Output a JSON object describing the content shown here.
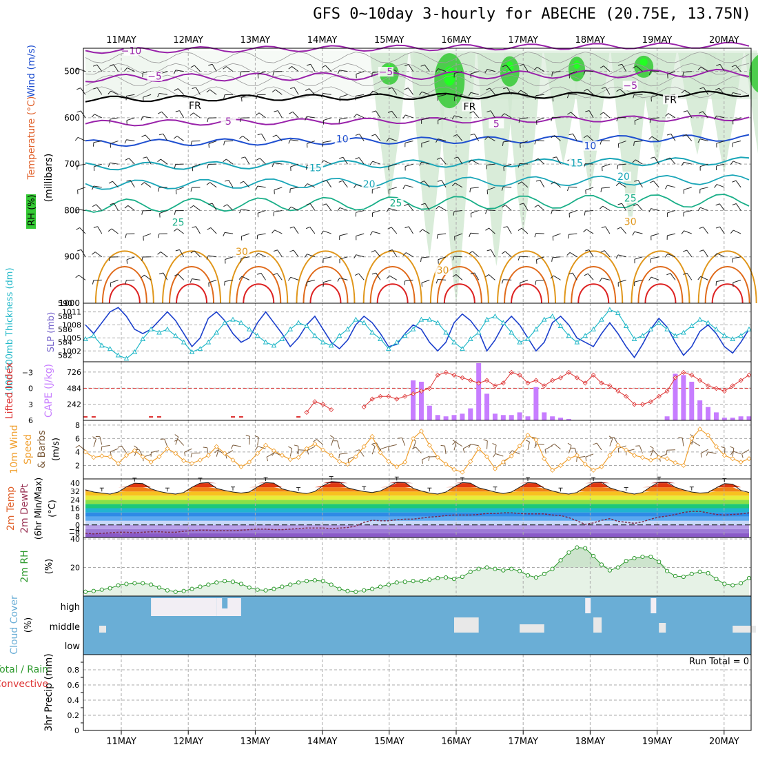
{
  "title": "GFS 0~10day 3-hourly for ABECHE (20.75E, 13.75N)",
  "dates": [
    "11MAY",
    "12MAY",
    "13MAY",
    "14MAY",
    "15MAY",
    "16MAY",
    "17MAY",
    "18MAY",
    "19MAY",
    "20MAY"
  ],
  "colors": {
    "rh_green": "#34c934",
    "rh_light": "#e6f2e6",
    "temp_purple": "#9922aa",
    "temp_blue": "#1f4fd0",
    "temp_teal": "#1aa6b8",
    "temp_green": "#1aaf88",
    "temp_orange": "#e0961a",
    "temp_red": "#dd2222",
    "slp_blue": "#1b3fcc",
    "thick_cyan": "#22b8c8",
    "li_red": "#dd3333",
    "cape_purple": "#c77dff",
    "wind_orange": "#f0a030",
    "barb_brown": "#7a5a3a",
    "rh2m_green": "#2e9a2e",
    "cloud_blue": "#6aaed6",
    "precip_green": "#2e9a2e",
    "precip_red": "#dd3333"
  },
  "chart_data": [
    {
      "type": "contour",
      "panel": "upper_air",
      "ylabel_parts": [
        "Wind (m/s)",
        "Temperature (°C)",
        "RH (%)"
      ],
      "ylabel_unit": "(millibars)",
      "yticks": [
        500,
        600,
        700,
        800,
        900,
        1000
      ],
      "ylim": [
        1000,
        450
      ],
      "contour_labels": [
        {
          "text": "−10",
          "color": "#9922aa",
          "x_day": 0.15,
          "p": 460
        },
        {
          "text": "−5",
          "color": "#9922aa",
          "x_day": 0.5,
          "p": 515
        },
        {
          "text": "−5",
          "color": "#9922aa",
          "x_day": 3.95,
          "p": 505
        },
        {
          "text": "−5",
          "color": "#9922aa",
          "x_day": 7.6,
          "p": 535
        },
        {
          "text": "FR",
          "color": "#000000",
          "x_day": 1.1,
          "p": 578
        },
        {
          "text": "FR",
          "color": "#000000",
          "x_day": 5.2,
          "p": 580
        },
        {
          "text": "FR",
          "color": "#000000",
          "x_day": 8.2,
          "p": 565
        },
        {
          "text": "5",
          "color": "#9922aa",
          "x_day": 1.6,
          "p": 612
        },
        {
          "text": "5",
          "color": "#9922aa",
          "x_day": 5.6,
          "p": 617
        },
        {
          "text": "10",
          "color": "#1f4fd0",
          "x_day": 3.3,
          "p": 650
        },
        {
          "text": "10",
          "color": "#1f4fd0",
          "x_day": 7.0,
          "p": 665
        },
        {
          "text": "15",
          "color": "#1aa6b8",
          "x_day": 2.9,
          "p": 712
        },
        {
          "text": "15",
          "color": "#1aa6b8",
          "x_day": 6.8,
          "p": 702
        },
        {
          "text": "20",
          "color": "#1aa6b8",
          "x_day": 3.7,
          "p": 747
        },
        {
          "text": "20",
          "color": "#1aa6b8",
          "x_day": 7.5,
          "p": 731
        },
        {
          "text": "25",
          "color": "#1aaf88",
          "x_day": 0.85,
          "p": 830
        },
        {
          "text": "25",
          "color": "#1aaf88",
          "x_day": 4.1,
          "p": 788
        },
        {
          "text": "25",
          "color": "#1aaf88",
          "x_day": 7.6,
          "p": 778
        },
        {
          "text": "30",
          "color": "#e0961a",
          "x_day": 1.8,
          "p": 893
        },
        {
          "text": "30",
          "color": "#e0961a",
          "x_day": 4.8,
          "p": 933
        },
        {
          "text": "30",
          "color": "#e0961a",
          "x_day": 7.6,
          "p": 828
        }
      ],
      "rh_levels": [
        "30",
        "50",
        "10",
        "30",
        "50",
        "30"
      ]
    },
    {
      "type": "line",
      "panel": "slp_thickness",
      "ylabel_left": "1000-500mb Thickness (dm)",
      "ylabel_right": "SLP (mb)",
      "yticks_left": [
        582,
        584,
        586,
        588,
        590
      ],
      "yticks_right": [
        1002,
        1005,
        1008,
        1011
      ],
      "ylim_left": [
        581,
        590
      ],
      "ylim_right": [
        999.5,
        1013.0
      ],
      "series": [
        {
          "name": "SLP",
          "axis": "right",
          "values": [
            1008.0,
            1006.0,
            1008.5,
            1011.0,
            1012.0,
            1010.0,
            1007.0,
            1006.0,
            1007.0,
            1009.0,
            1011.0,
            1009.0,
            1006.0,
            1003.0,
            1005.0,
            1009.5,
            1011.0,
            1009.0,
            1006.0,
            1004.0,
            1005.0,
            1008.5,
            1011.0,
            1008.5,
            1006.0,
            1003.0,
            1005.0,
            1008.0,
            1010.0,
            1007.0,
            1004.0,
            1002.5,
            1004.5,
            1008.0,
            1010.0,
            1008.5,
            1006.0,
            1003.0,
            1003.5,
            1006.0,
            1008.0,
            1007.0,
            1004.0,
            1002.0,
            1004.0,
            1008.5,
            1010.5,
            1009.0,
            1006.5,
            1002.0,
            1004.5,
            1008.0,
            1010.0,
            1008.0,
            1005.0,
            1002.0,
            1004.0,
            1008.5,
            1010.0,
            1008.0,
            1005.0,
            1004.0,
            1003.0,
            1006.0,
            1008.5,
            1006.0,
            1003.0,
            1000.5,
            1003.5,
            1007.0,
            1009.5,
            1007.5,
            1004.0,
            1001.0,
            1003.0,
            1006.5,
            1008.0,
            1006.0,
            1003.0,
            1001.5,
            1004.0,
            1007.0
          ]
        },
        {
          "name": "Thickness",
          "axis": "left",
          "values": [
            584.5,
            585.0,
            583.5,
            583.0,
            582.0,
            581.5,
            582.5,
            584.5,
            586.0,
            585.5,
            586.0,
            585.0,
            584.0,
            582.5,
            583.0,
            584.0,
            585.5,
            587.0,
            587.5,
            587.0,
            586.0,
            585.0,
            584.0,
            583.5,
            584.5,
            586.0,
            587.0,
            586.5,
            585.0,
            584.0,
            583.5,
            585.0,
            586.0,
            587.5,
            587.0,
            585.5,
            584.5,
            583.0,
            584.0,
            585.0,
            586.0,
            587.5,
            587.5,
            587.0,
            585.5,
            584.0,
            583.0,
            584.5,
            585.5,
            587.5,
            588.0,
            587.0,
            585.5,
            584.0,
            584.5,
            586.0,
            587.5,
            588.0,
            586.5,
            585.0,
            584.0,
            585.0,
            586.0,
            587.5,
            589.0,
            588.5,
            586.5,
            584.5,
            585.0,
            586.0,
            587.0,
            586.0,
            585.0,
            585.5,
            586.5,
            587.5,
            587.0,
            586.0,
            585.0,
            584.5,
            585.0,
            586.0
          ]
        }
      ]
    },
    {
      "type": "bar+line",
      "panel": "li_cape",
      "ylabel_left": "Lifted Index",
      "ylabel_right": "CAPE (J/kg)",
      "yticks_left": [
        -3,
        0,
        3,
        6
      ],
      "yticks_right": [
        242,
        484,
        726
      ],
      "ylim_left": [
        6,
        -5
      ],
      "ylim_right": [
        0,
        880
      ],
      "series": [
        {
          "name": "Lifted Index",
          "values": [
            null,
            null,
            null,
            null,
            null,
            null,
            null,
            null,
            null,
            null,
            null,
            null,
            null,
            null,
            null,
            null,
            null,
            null,
            null,
            null,
            null,
            null,
            null,
            null,
            null,
            null,
            null,
            4.5,
            2.5,
            3.0,
            4.0,
            null,
            null,
            null,
            3.5,
            2.0,
            1.5,
            1.5,
            2.0,
            1.5,
            1.0,
            0.5,
            0.0,
            -2.5,
            -3.0,
            -2.5,
            -2.0,
            -1.5,
            -1.0,
            -1.5,
            -0.5,
            -1.0,
            -3.0,
            -2.5,
            -1.0,
            -1.5,
            -0.5,
            -1.5,
            -2.0,
            -3.0,
            -2.0,
            -1.0,
            -2.5,
            -1.0,
            -0.5,
            0.5,
            1.5,
            3.0,
            3.0,
            2.5,
            1.5,
            0.5,
            -2.0,
            -3.0,
            -2.5,
            -1.5,
            -0.5,
            0.0,
            0.5,
            -0.5,
            -1.5,
            -2.5
          ]
        },
        {
          "name": "CAPE",
          "values": [
            0,
            0,
            0,
            0,
            0,
            0,
            0,
            0,
            0,
            0,
            0,
            0,
            0,
            0,
            0,
            0,
            0,
            0,
            0,
            0,
            0,
            0,
            0,
            0,
            0,
            0,
            0,
            0,
            0,
            0,
            0,
            0,
            0,
            0,
            0,
            0,
            0,
            0,
            0,
            0,
            600,
            580,
            220,
            80,
            60,
            80,
            100,
            180,
            860,
            400,
            100,
            80,
            80,
            120,
            60,
            500,
            120,
            60,
            40,
            20,
            0,
            0,
            0,
            0,
            0,
            0,
            0,
            0,
            0,
            0,
            0,
            60,
            700,
            680,
            580,
            300,
            200,
            120,
            40,
            40,
            60,
            60
          ]
        }
      ]
    },
    {
      "type": "line",
      "panel": "wind10m",
      "ylabel": "10m Wind Speed & Barbs (m/s)",
      "yticks": [
        2,
        4,
        6,
        8
      ],
      "ylim": [
        0,
        8.7
      ],
      "values": [
        4.0,
        3.2,
        3.4,
        3.3,
        2.3,
        3.5,
        4.2,
        3.3,
        2.5,
        3.3,
        4.5,
        3.8,
        2.7,
        2.3,
        2.8,
        3.5,
        4.8,
        3.8,
        2.8,
        1.8,
        2.5,
        3.8,
        5.0,
        4.2,
        3.5,
        2.9,
        3.2,
        4.5,
        5.2,
        4.3,
        3.5,
        2.6,
        2.2,
        3.3,
        4.8,
        6.3,
        3.9,
        2.6,
        1.8,
        2.5,
        6.0,
        7.1,
        5.0,
        3.2,
        2.2,
        1.4,
        1.0,
        2.6,
        4.5,
        3.3,
        1.5,
        2.5,
        3.4,
        4.9,
        6.5,
        5.8,
        3.0,
        1.3,
        2.0,
        3.0,
        3.5,
        2.2,
        1.3,
        1.8,
        3.5,
        5.0,
        4.3,
        3.5,
        3.2,
        2.8,
        3.2,
        3.0,
        2.4,
        2.0,
        6.0,
        7.4,
        6.5,
        4.8,
        3.5,
        3.0,
        2.5,
        3.0
      ]
    },
    {
      "type": "area+line",
      "panel": "temp2m",
      "ylabel": "2m Temp 2m DewPt (6hr Min/Max) (°C)",
      "yticks": [
        -8,
        -4,
        0,
        8,
        16,
        24,
        32,
        40
      ],
      "ylim": [
        -12,
        44
      ],
      "series": [
        {
          "name": "Temp",
          "values": [
            33.5,
            31.5,
            30.5,
            29.5,
            31.5,
            36.5,
            40.0,
            39.5,
            34.5,
            32.0,
            30.5,
            29.5,
            31.0,
            36.0,
            40.0,
            40.5,
            35.0,
            33.0,
            31.5,
            30.5,
            31.5,
            36.5,
            40.5,
            40.0,
            34.5,
            32.5,
            31.0,
            30.0,
            32.0,
            37.5,
            41.5,
            41.0,
            35.5,
            33.5,
            32.0,
            31.0,
            32.5,
            36.5,
            41.0,
            40.5,
            35.0,
            32.5,
            30.5,
            29.5,
            31.5,
            36.5,
            40.5,
            40.0,
            35.5,
            33.5,
            31.5,
            30.0,
            31.5,
            36.0,
            40.5,
            40.0,
            35.0,
            32.5,
            30.5,
            29.5,
            31.0,
            36.0,
            40.5,
            41.0,
            35.5,
            33.0,
            31.0,
            29.5,
            31.0,
            36.5,
            41.0,
            41.0,
            36.0,
            33.5,
            31.5,
            30.5,
            31.0,
            35.5,
            39.5,
            39.0,
            33.0,
            31.0
          ]
        },
        {
          "name": "DewPt",
          "values": [
            -8.0,
            -8.5,
            -8.0,
            -7.5,
            -7.0,
            -7.0,
            -7.5,
            -7.0,
            -6.5,
            -6.5,
            -7.0,
            -7.0,
            -6.0,
            -5.5,
            -5.0,
            -5.0,
            -5.5,
            -5.5,
            -5.5,
            -5.0,
            -4.5,
            -4.0,
            -4.0,
            -4.5,
            -4.5,
            -4.0,
            -3.5,
            -3.0,
            -3.0,
            -3.0,
            -3.5,
            -3.0,
            -2.5,
            -1.0,
            2.5,
            4.5,
            4.0,
            4.0,
            5.0,
            5.5,
            5.5,
            6.5,
            7.5,
            8.0,
            9.0,
            9.5,
            9.5,
            9.5,
            10.0,
            11.0,
            11.0,
            11.5,
            11.5,
            11.0,
            10.5,
            10.5,
            10.5,
            9.5,
            9.0,
            7.0,
            4.0,
            0.5,
            2.0,
            4.5,
            6.0,
            3.5,
            2.5,
            1.5,
            3.0,
            5.5,
            7.5,
            8.5,
            10.0,
            12.0,
            13.0,
            13.0,
            11.5,
            10.0,
            9.5,
            10.0,
            10.5,
            11.5
          ]
        }
      ]
    },
    {
      "type": "area+line",
      "panel": "rh2m",
      "ylabel": "2m RH (%)",
      "yticks": [
        20,
        40
      ],
      "ylim": [
        0,
        41
      ],
      "values": [
        3.0,
        3.5,
        4.5,
        5.5,
        7.5,
        8.5,
        9.0,
        9.0,
        8.0,
        6.0,
        4.0,
        3.0,
        3.5,
        5.0,
        6.5,
        8.0,
        9.5,
        10.5,
        10.0,
        8.5,
        6.0,
        4.5,
        4.0,
        5.0,
        6.5,
        8.0,
        9.5,
        10.5,
        11.0,
        10.5,
        8.0,
        5.0,
        3.5,
        3.0,
        4.0,
        5.0,
        6.5,
        8.0,
        9.5,
        10.0,
        10.5,
        10.5,
        11.5,
        12.5,
        13.0,
        12.0,
        13.5,
        17.0,
        19.0,
        20.0,
        19.0,
        18.0,
        19.0,
        17.5,
        14.5,
        13.0,
        15.5,
        19.0,
        25.0,
        30.5,
        34.0,
        33.5,
        28.0,
        22.0,
        18.0,
        20.0,
        24.5,
        26.5,
        27.5,
        27.5,
        24.0,
        17.5,
        14.0,
        13.5,
        15.5,
        17.0,
        16.0,
        12.0,
        8.5,
        7.5,
        9.0,
        12.5
      ]
    },
    {
      "type": "heatmap",
      "panel": "cloud_cover",
      "ylabel": "Cloud Cover (%)",
      "row_labels": [
        "high",
        "middle",
        "low"
      ]
    },
    {
      "type": "bar",
      "panel": "precip",
      "ylabel_left": "3hr Precip (mm)",
      "series_labels": [
        "Total / Rain",
        "Convective"
      ],
      "yticks": [
        0,
        0.2,
        0.4,
        0.6,
        0.8
      ],
      "ylim": [
        0,
        1
      ],
      "run_total_label": "Run Total = 0",
      "values": []
    }
  ]
}
